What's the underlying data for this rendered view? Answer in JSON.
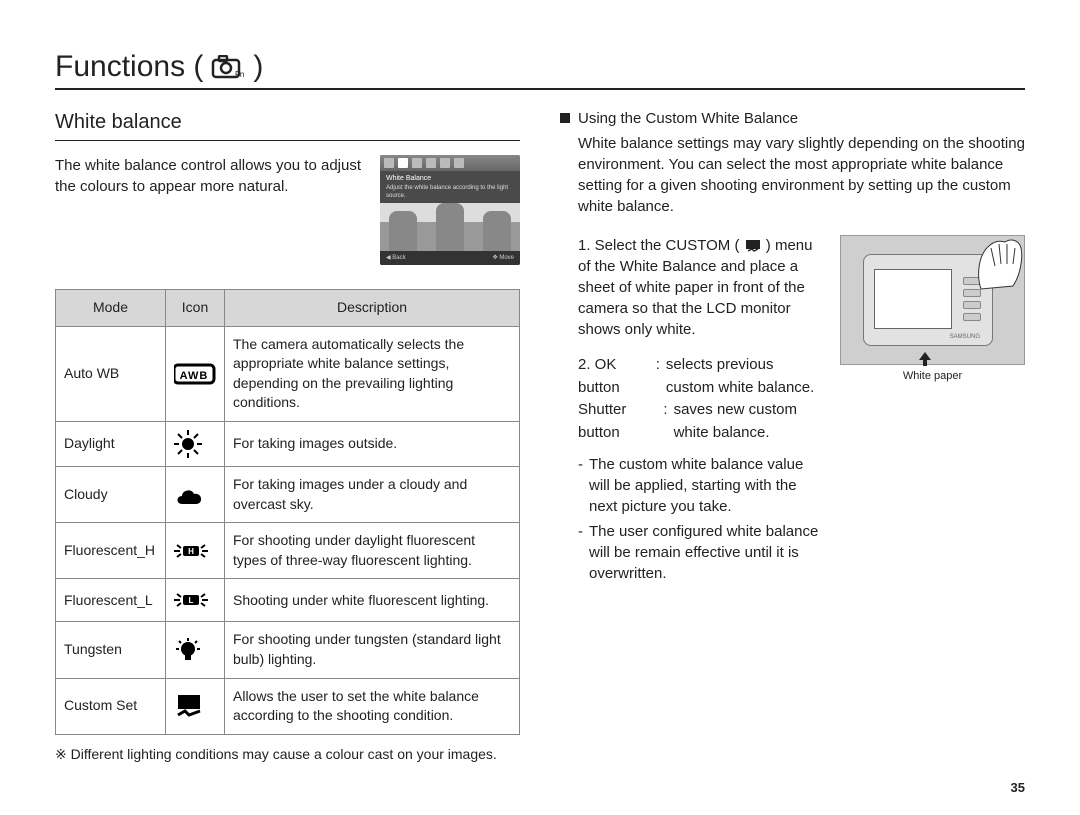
{
  "page": {
    "title_prefix": "Functions (",
    "title_suffix": ")",
    "number": "35"
  },
  "left": {
    "subtitle": "White balance",
    "intro": "The white balance control allows you to adjust the colours to appear more natural.",
    "screen": {
      "title": "White Balance",
      "desc": "Adjust the white balance according to the light source.",
      "back": "Back",
      "move": "Move"
    },
    "table": {
      "headers": {
        "mode": "Mode",
        "icon": "Icon",
        "description": "Description"
      },
      "rows": [
        {
          "mode": "Auto WB",
          "icon": "awb",
          "desc": "The camera automatically selects the appropriate white balance settings, depending on the prevailing lighting conditions."
        },
        {
          "mode": "Daylight",
          "icon": "sun",
          "desc": "For taking images outside."
        },
        {
          "mode": "Cloudy",
          "icon": "cloud",
          "desc": "For taking images under a cloudy and overcast sky."
        },
        {
          "mode": "Fluorescent_H",
          "icon": "fl_h",
          "desc": "For shooting under daylight fluorescent types of three-way fluorescent lighting."
        },
        {
          "mode": "Fluorescent_L",
          "icon": "fl_l",
          "desc": "Shooting under white fluorescent lighting."
        },
        {
          "mode": "Tungsten",
          "icon": "bulb",
          "desc": "For shooting under tungsten (standard light bulb) lighting."
        },
        {
          "mode": "Custom Set",
          "icon": "custom",
          "desc": "Allows the user to set the white balance according to the shooting condition."
        }
      ]
    },
    "footnote": "※ Different lighting conditions may cause a colour cast on your images."
  },
  "right": {
    "heading": "Using the Custom White Balance",
    "intro": "White balance settings may vary slightly depending on the shooting environment. You can select the most appropriate white balance setting for a given shooting environment by setting up the custom white balance.",
    "step1_a": "1. Select the CUSTOM (",
    "step1_b": ") menu of the White Balance and place a sheet of white paper in front of the camera so that the LCD monitor shows only white.",
    "caption": "White paper",
    "brand": "SAMSUNG",
    "btn_rows": [
      {
        "label": "2. OK button",
        "sep": ":",
        "text": "selects previous custom white balance."
      },
      {
        "label": "Shutter button",
        "sep": ":",
        "text": "saves new custom white balance."
      }
    ],
    "notes": [
      "The custom white balance value will be applied, starting with the next picture you take.",
      "The user configured white balance will be remain effective until it is overwritten."
    ]
  },
  "colors": {
    "text": "#222222",
    "rule": "#222222",
    "th_bg": "#d7d7d7",
    "border": "#888888"
  }
}
